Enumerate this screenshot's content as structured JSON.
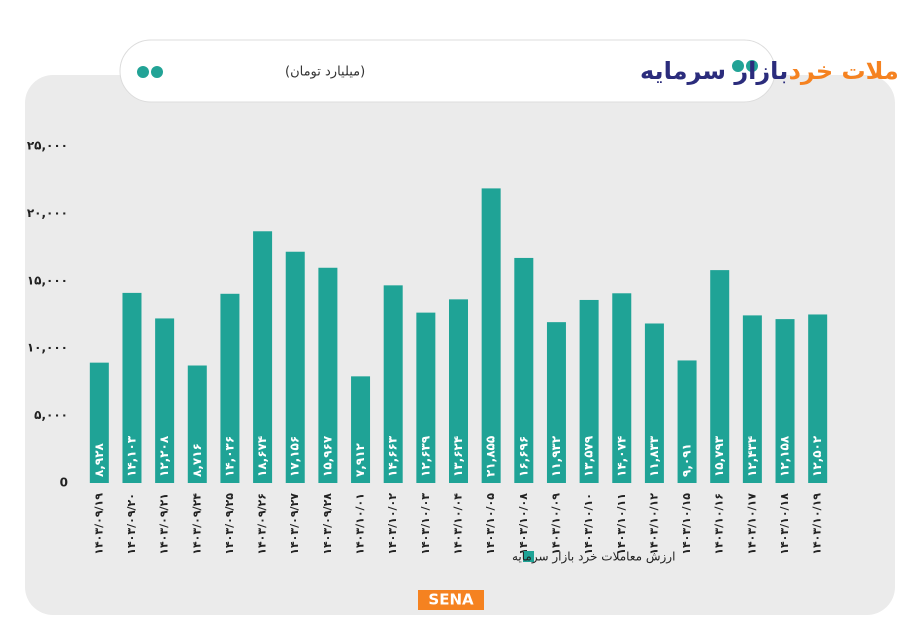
{
  "chart_data": {
    "type": "bar",
    "title": {
      "highlight": "ارزش معاملات خرد",
      "main": "بازار سرمایه",
      "unit": "(میلیارد تومان)"
    },
    "categories": [
      "۱۴۰۳/۰۹/۱۹",
      "۱۴۰۳/۰۹/۲۰",
      "۱۴۰۳/۰۹/۲۱",
      "۱۴۰۳/۰۹/۲۴",
      "۱۴۰۳/۰۹/۲۵",
      "۱۴۰۳/۰۹/۲۶",
      "۱۴۰۳/۰۹/۲۷",
      "۱۴۰۳/۰۹/۲۸",
      "۱۴۰۳/۱۰/۰۱",
      "۱۴۰۳/۱۰/۰۲",
      "۱۴۰۳/۱۰/۰۳",
      "۱۴۰۳/۱۰/۰۴",
      "۱۴۰۳/۱۰/۰۵",
      "۱۴۰۳/۱۰/۰۸",
      "۱۴۰۳/۱۰/۰۹",
      "۱۴۰۳/۱۰/۱۰",
      "۱۴۰۳/۱۰/۱۱",
      "۱۴۰۳/۱۰/۱۲",
      "۱۴۰۳/۱۰/۱۵",
      "۱۴۰۳/۱۰/۱۶",
      "۱۴۰۳/۱۰/۱۷",
      "۱۴۰۳/۱۰/۱۸",
      "۱۴۰۳/۱۰/۱۹"
    ],
    "series": [
      {
        "name": "ارزش معاملات خرد بازار سرمایه",
        "color": "#1fa396",
        "values": [
          8928,
          14103,
          12208,
          8716,
          14036,
          18674,
          17156,
          15967,
          7912,
          14663,
          12639,
          13624,
          21855,
          16696,
          11932,
          13579,
          14074,
          11833,
          9091,
          15793,
          12434,
          12158,
          12502
        ],
        "value_labels": [
          "۸,۹۲۸",
          "۱۴,۱۰۳",
          "۱۲,۲۰۸",
          "۸,۷۱۶",
          "۱۴,۰۳۶",
          "۱۸,۶۷۴",
          "۱۷,۱۵۶",
          "۱۵,۹۶۷",
          "۷,۹۱۲",
          "۱۴,۶۶۳",
          "۱۲,۶۳۹",
          "۱۳,۶۲۴",
          "۲۱,۸۵۵",
          "۱۶,۶۹۶",
          "۱۱,۹۳۲",
          "۱۳,۵۷۹",
          "۱۴,۰۷۴",
          "۱۱,۸۳۳",
          "۹,۰۹۱",
          "۱۵,۷۹۳",
          "۱۲,۴۳۴",
          "۱۲,۱۵۸",
          "۱۲,۵۰۲"
        ]
      }
    ],
    "ylim": [
      0,
      25000
    ],
    "yticks": [
      0,
      {
        "value": 5000,
        "label": "۵,۰۰۰"
      },
      {
        "value": 10000,
        "label": "۱۰,۰۰۰"
      },
      {
        "value": 15000,
        "label": "۱۵,۰۰۰"
      },
      {
        "value": 20000,
        "label": "۲۰,۰۰۰"
      },
      {
        "value": 25000,
        "label": "۲۵,۰۰۰"
      }
    ],
    "grid": false,
    "legend": "bottom",
    "logo": "SENA"
  }
}
